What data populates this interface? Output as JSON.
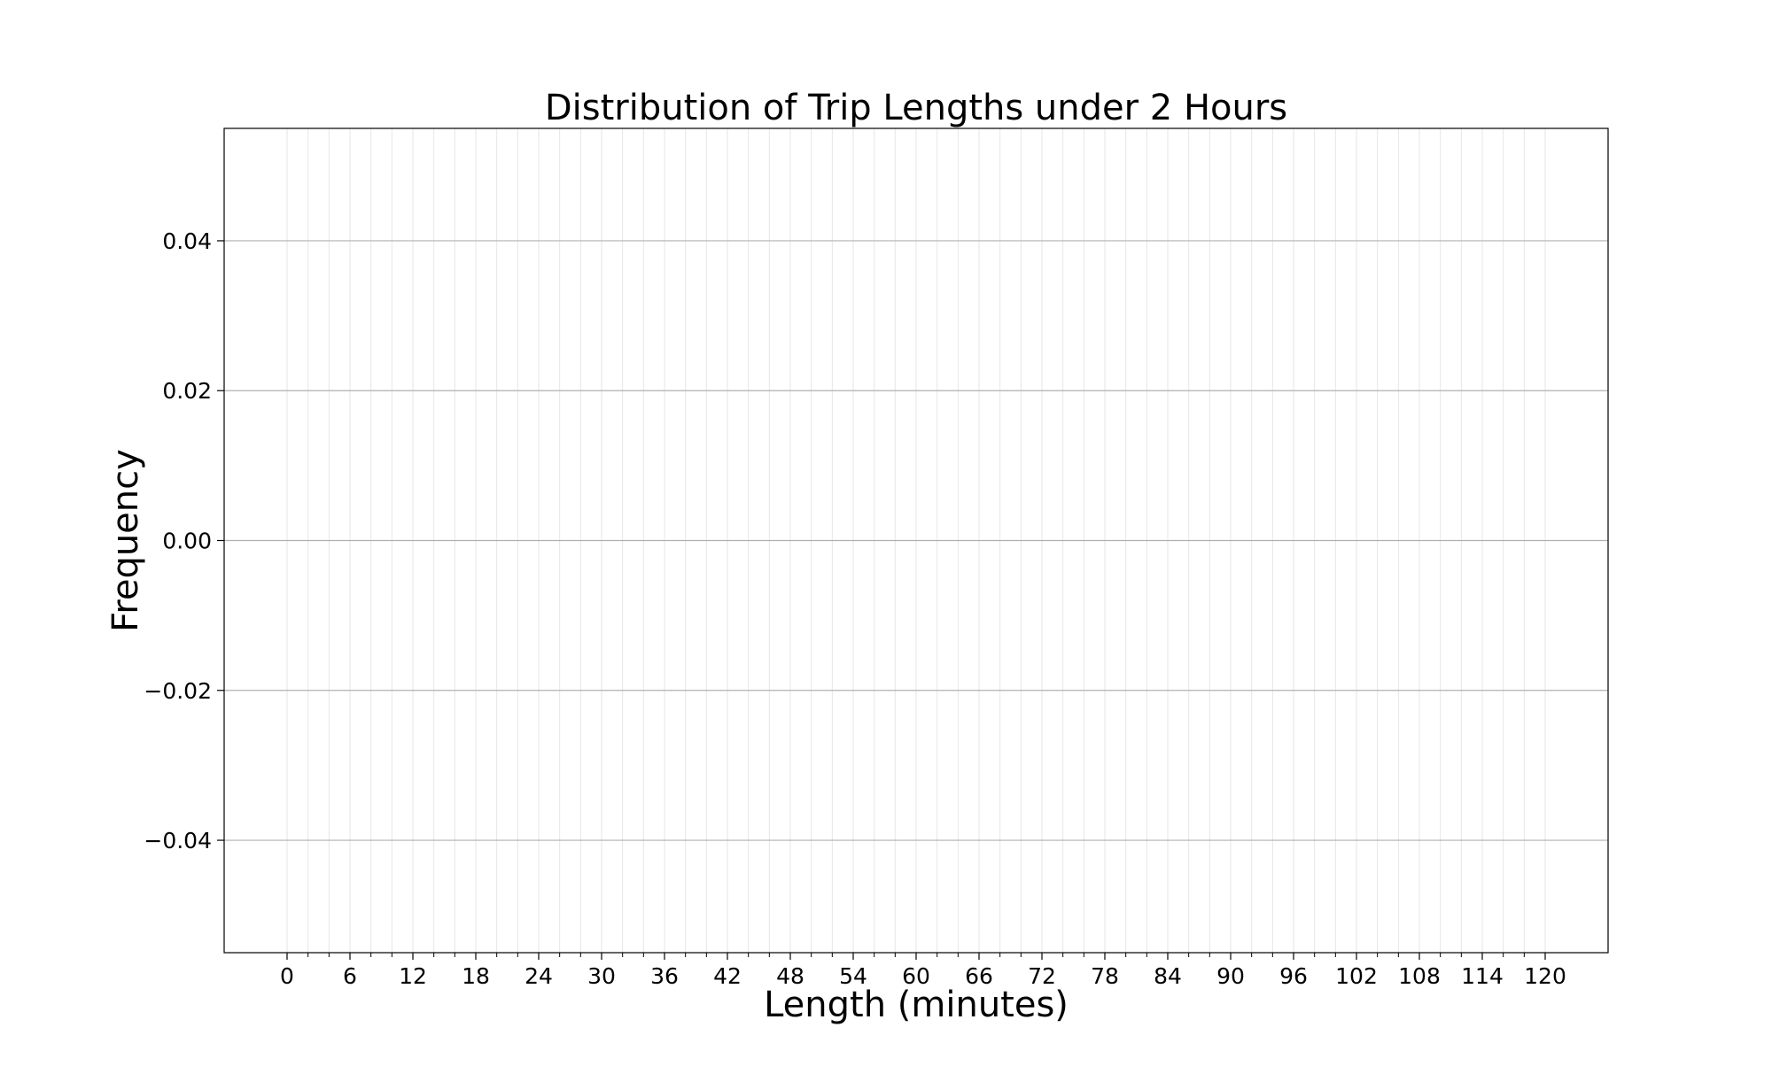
{
  "chart_data": {
    "type": "bar",
    "title": "Distribution of Trip Lengths under 2 Hours",
    "xlabel": "Length (minutes)",
    "ylabel": "Frequency",
    "x_minor_ticks": [
      0,
      2,
      4,
      6,
      8,
      10,
      12,
      14,
      16,
      18,
      20,
      22,
      24,
      26,
      28,
      30,
      32,
      34,
      36,
      38,
      40,
      42,
      44,
      46,
      48,
      50,
      52,
      54,
      56,
      58,
      60,
      62,
      64,
      66,
      68,
      70,
      72,
      74,
      76,
      78,
      80,
      82,
      84,
      86,
      88,
      90,
      92,
      94,
      96,
      98,
      100,
      102,
      104,
      106,
      108,
      110,
      112,
      114,
      116,
      118,
      120
    ],
    "x_tick_labels": [
      {
        "value": 0,
        "label": "0"
      },
      {
        "value": 6,
        "label": "6"
      },
      {
        "value": 12,
        "label": "12"
      },
      {
        "value": 18,
        "label": "18"
      },
      {
        "value": 24,
        "label": "24"
      },
      {
        "value": 30,
        "label": "30"
      },
      {
        "value": 36,
        "label": "36"
      },
      {
        "value": 42,
        "label": "42"
      },
      {
        "value": 48,
        "label": "48"
      },
      {
        "value": 54,
        "label": "54"
      },
      {
        "value": 60,
        "label": "60"
      },
      {
        "value": 66,
        "label": "66"
      },
      {
        "value": 72,
        "label": "72"
      },
      {
        "value": 78,
        "label": "78"
      },
      {
        "value": 84,
        "label": "84"
      },
      {
        "value": 90,
        "label": "90"
      },
      {
        "value": 96,
        "label": "96"
      },
      {
        "value": 102,
        "label": "102"
      },
      {
        "value": 108,
        "label": "108"
      },
      {
        "value": 114,
        "label": "114"
      },
      {
        "value": 120,
        "label": "120"
      }
    ],
    "y_ticks": [
      {
        "value": 0.04,
        "label": "0.04"
      },
      {
        "value": 0.02,
        "label": "0.02"
      },
      {
        "value": 0.0,
        "label": "0.00"
      },
      {
        "value": -0.02,
        "label": "−0.02"
      },
      {
        "value": -0.04,
        "label": "−0.04"
      }
    ],
    "xlim": [
      -6,
      126
    ],
    "ylim": [
      -0.055,
      0.055
    ],
    "values": [],
    "grid": true,
    "legend": "none",
    "colors": {
      "major_grid": "#b0b0b0",
      "minor_grid": "#e6e6e6",
      "axes": "#000000"
    }
  }
}
